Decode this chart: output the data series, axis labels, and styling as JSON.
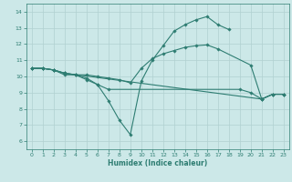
{
  "title": "",
  "xlabel": "Humidex (Indice chaleur)",
  "xlim": [
    -0.5,
    23.5
  ],
  "ylim": [
    5.5,
    14.5
  ],
  "xticks": [
    0,
    1,
    2,
    3,
    4,
    5,
    6,
    7,
    8,
    9,
    10,
    11,
    12,
    13,
    14,
    15,
    16,
    17,
    18,
    19,
    20,
    21,
    22,
    23
  ],
  "yticks": [
    6,
    7,
    8,
    9,
    10,
    11,
    12,
    13,
    14
  ],
  "bg_color": "#cce8e8",
  "line_color": "#2e7d72",
  "grid_color": "#b0d0d0",
  "lines": [
    {
      "x": [
        0,
        1,
        2,
        3,
        4,
        5,
        6,
        7,
        8,
        9,
        10,
        11,
        12,
        13,
        14,
        15,
        16,
        17,
        18
      ],
      "y": [
        10.5,
        10.5,
        10.4,
        10.1,
        10.1,
        9.8,
        9.5,
        8.5,
        7.3,
        6.4,
        9.7,
        11.0,
        11.9,
        12.8,
        13.2,
        13.5,
        13.7,
        13.2,
        12.9
      ]
    },
    {
      "x": [
        0,
        1,
        2,
        3,
        4,
        5,
        6,
        7,
        8,
        9,
        10,
        11,
        12,
        13,
        14,
        15,
        16,
        17,
        20,
        21,
        22,
        23
      ],
      "y": [
        10.5,
        10.5,
        10.4,
        10.2,
        10.1,
        10.1,
        10.0,
        9.9,
        9.8,
        9.6,
        10.5,
        11.1,
        11.4,
        11.6,
        11.8,
        11.9,
        11.95,
        11.7,
        10.7,
        8.6,
        8.9,
        8.9
      ]
    },
    {
      "x": [
        0,
        1,
        2,
        3,
        4,
        5,
        6,
        7,
        19,
        20,
        21,
        22,
        23
      ],
      "y": [
        10.5,
        10.5,
        10.4,
        10.2,
        10.1,
        9.9,
        9.5,
        9.2,
        9.2,
        9.0,
        8.6,
        8.9,
        8.9
      ]
    },
    {
      "x": [
        0,
        1,
        2,
        3,
        21,
        22,
        23
      ],
      "y": [
        10.5,
        10.5,
        10.4,
        10.2,
        8.6,
        8.9,
        8.9
      ]
    }
  ]
}
